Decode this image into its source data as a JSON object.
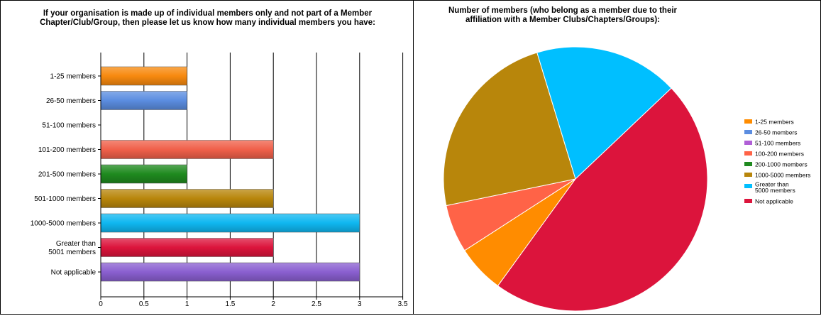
{
  "chart_data": [
    {
      "type": "bar",
      "orientation": "horizontal",
      "title_lines": [
        "If your organisation is made up of individual members only and not part of a Member",
        "Chapter/Club/Group, then please let us know how many individual members you have:"
      ],
      "categories": [
        "1-25 members",
        "26-50 members",
        "51-100 members",
        "101-200 members",
        "201-500 members",
        "501-1000 members",
        "1000-5000 members",
        "Greater than\n5001 members",
        "Not applicable"
      ],
      "values": [
        1,
        1,
        0,
        2,
        1,
        2,
        3,
        2,
        3
      ],
      "colors": [
        "#f7890f",
        "#5b8de0",
        "#b05fd6",
        "#f0604a",
        "#1f8a1f",
        "#b8860b",
        "#0fb7f0",
        "#dc143c",
        "#8a5fd0"
      ],
      "xlim": [
        0,
        3.5
      ],
      "xticks": [
        "0",
        "0.5",
        "1",
        "1.5",
        "2",
        "2.5",
        "3",
        "3.5"
      ],
      "grid": "vertical"
    },
    {
      "type": "pie",
      "title_lines": [
        "Number of members (who belong as a member due to their",
        "affiliation with a Member Clubs/Chapters/Groups):"
      ],
      "slices": [
        {
          "label": "1-25 members",
          "value": 1,
          "color": "#ff8c00"
        },
        {
          "label": "26-50 members",
          "value": 0,
          "color": "#5b8de0"
        },
        {
          "label": "51-100 members",
          "value": 0,
          "color": "#b05fd6"
        },
        {
          "label": "100-200 members",
          "value": 1,
          "color": "#ff6347"
        },
        {
          "label": "200-1000 members",
          "value": 0,
          "color": "#1f8a1f"
        },
        {
          "label": "1000-5000 members",
          "value": 4,
          "color": "#b8860b"
        },
        {
          "label": "Greater than\n5000 members",
          "value": 3,
          "color": "#00bfff"
        },
        {
          "label": "Not applicable",
          "value": 8,
          "color": "#dc143c"
        }
      ],
      "legend_position": "right"
    }
  ]
}
